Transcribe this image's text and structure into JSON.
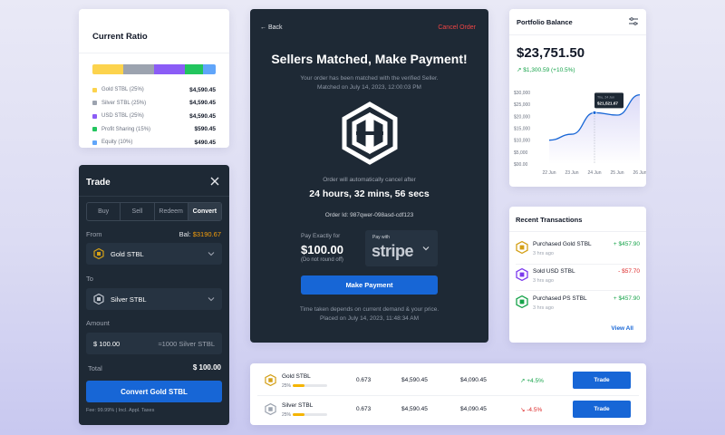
{
  "ratio": {
    "title": "Current Ratio",
    "items": [
      {
        "name": "Gold STBL (25%)",
        "value": "$4,590.45",
        "color": "#fcd34d",
        "share": 25
      },
      {
        "name": "Silver STBL (25%)",
        "value": "$4,590.45",
        "color": "#9ca3af",
        "share": 25
      },
      {
        "name": "USD STBL (25%)",
        "value": "$4,590.45",
        "color": "#8b5cf6",
        "share": 25
      },
      {
        "name": "Profit Sharing (15%)",
        "value": "$590.45",
        "color": "#22c55e",
        "share": 15
      },
      {
        "name": "Equity (10%)",
        "value": "$490.45",
        "color": "#60a5fa",
        "share": 10
      }
    ]
  },
  "trade": {
    "title": "Trade",
    "tabs": [
      "Buy",
      "Sell",
      "Redeem",
      "Convert"
    ],
    "from_label": "From",
    "balance_label": "Bal:",
    "balance_value": "$3190.67",
    "from_asset": "Gold STBL",
    "to_label": "To",
    "to_asset": "Silver STBL",
    "amount_label": "Amount",
    "amount_value": "$ 100.00",
    "amount_converted": "≈1000 Silver STBL",
    "total_label": "Total",
    "total_value": "$ 100.00",
    "convert_button": "Convert Gold STBL",
    "fee_text": "Fee: 99.99% | Incl. Appl. Taxes"
  },
  "payment": {
    "back_label": "Back",
    "cancel_label": "Cancel Order",
    "title": "Sellers Matched, Make Payment!",
    "subtitle_line1": "Your order has been matched with the verified Seller.",
    "subtitle_line2": "Matched on July 14, 2023, 12:00:03 PM",
    "auto_cancel": "Order will automatically cancel after",
    "countdown": "24 hours, 32 mins, 56 secs",
    "order_id": "Order Id: 987qwer-098asd-cdf123",
    "pay_label": "Pay Exactly for",
    "pay_amount": "$100.00",
    "pay_note": "(Do not round off)",
    "pay_with": "Pay with",
    "provider": "stripe",
    "make_payment": "Make Payment",
    "footer_line1": "Time taken depends on current demand & your price.",
    "footer_line2": "Placed on July 14, 2023, 11:48:34 AM"
  },
  "portfolio": {
    "title": "Portfolio Balance",
    "balance": "$23,751.50",
    "change": "$1,300.59 (+10.5%)",
    "tooltip_date": "Thu, 24 Jun",
    "tooltip_value": "$21,521.67",
    "y_ticks": [
      "$30,000",
      "$25,000",
      "$20,000",
      "$15,000",
      "$10,000",
      "$5,000",
      "$00.00"
    ],
    "x_ticks": [
      "22 Jun",
      "23 Jun",
      "24 Jun",
      "25 Jun",
      "26 Jun"
    ]
  },
  "chart_data": {
    "type": "line",
    "x": [
      "22 Jun",
      "23 Jun",
      "24 Jun",
      "25 Jun",
      "26 Jun"
    ],
    "ylim": [
      0,
      30000
    ],
    "series": [
      {
        "values": [
          10000,
          12500,
          21521.67,
          20500,
          29000
        ]
      }
    ]
  },
  "recent": {
    "title": "Recent  Transactions",
    "items": [
      {
        "name": "Purchased Gold STBL",
        "time": "3 hrs ago",
        "amount": "+ $457.90",
        "dir": "up",
        "color": "#d4a017"
      },
      {
        "name": "Sold USD STBL",
        "time": "3 hrs ago",
        "amount": "- $57.70",
        "dir": "down",
        "color": "#7c3aed"
      },
      {
        "name": "Purchased PS STBL",
        "time": "3 hrs ago",
        "amount": "+ $457.90",
        "dir": "up",
        "color": "#16a34a"
      }
    ],
    "view_all": "View All"
  },
  "table": {
    "rows": [
      {
        "name": "Gold STBL",
        "pct": "25%",
        "progress": 0.35,
        "price": "0.673",
        "v1": "$4,590.45",
        "v2": "$4,090.45",
        "change": "+4.5%",
        "dir": "up",
        "button": "Trade",
        "color": "#d4a017"
      },
      {
        "name": "Silver STBL",
        "pct": "25%",
        "progress": 0.35,
        "price": "0.673",
        "v1": "$4,590.45",
        "v2": "$4,090.45",
        "change": "-4.5%",
        "dir": "down",
        "button": "Trade",
        "color": "#9ca3af"
      }
    ]
  }
}
